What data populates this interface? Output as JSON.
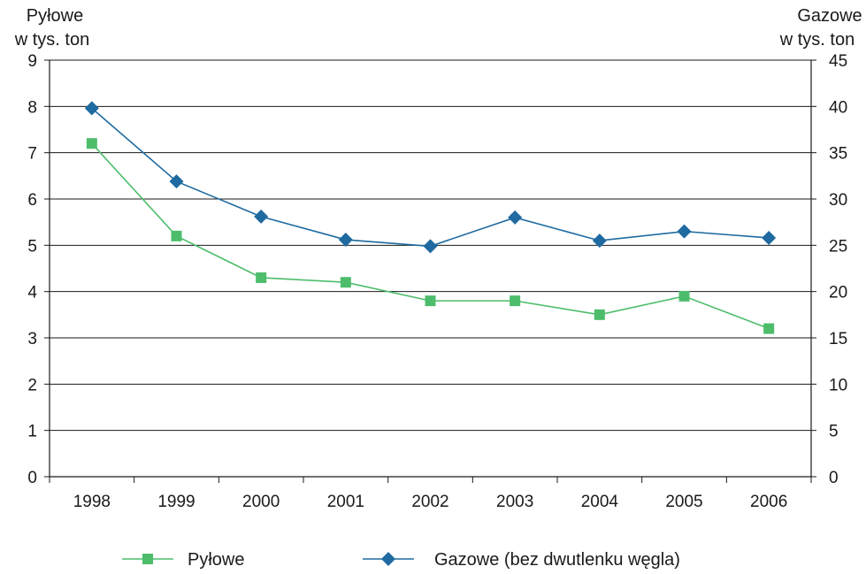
{
  "chart_data": {
    "type": "line",
    "categories": [
      "1998",
      "1999",
      "2000",
      "2001",
      "2002",
      "2003",
      "2004",
      "2005",
      "2006"
    ],
    "left_axis": {
      "title_lines": [
        "Pyłowe",
        "w tys. ton"
      ],
      "ylim": [
        0,
        9
      ],
      "ticks": [
        "0",
        "1",
        "2",
        "3",
        "4",
        "5",
        "6",
        "7",
        "8",
        "9"
      ]
    },
    "right_axis": {
      "title_lines": [
        "Gazowe",
        "w tys. ton"
      ],
      "ylim": [
        0,
        45
      ],
      "ticks": [
        "0",
        "5",
        "10",
        "15",
        "20",
        "25",
        "30",
        "35",
        "40",
        "45"
      ]
    },
    "series": [
      {
        "name": "Pyłowe",
        "axis": "left",
        "color": "#4dbd6b",
        "marker": "square",
        "values": [
          7.2,
          5.2,
          4.3,
          4.2,
          3.8,
          3.8,
          3.5,
          3.9,
          3.2
        ]
      },
      {
        "name": "Gazowe (bez dwutlenku węgla)",
        "axis": "right",
        "color": "#1f6aa0",
        "marker": "diamond",
        "values": [
          39.8,
          31.9,
          28.1,
          25.6,
          24.9,
          28.0,
          25.5,
          26.5,
          25.8
        ]
      }
    ],
    "grid": true,
    "legend_position": "bottom-center"
  }
}
